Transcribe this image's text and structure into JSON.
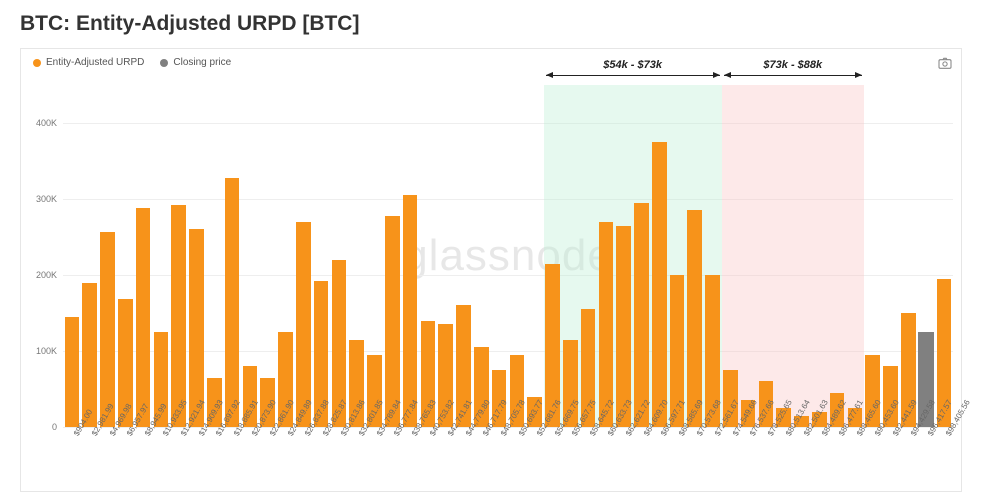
{
  "title": "BTC: Entity-Adjusted URPD [BTC]",
  "watermark": "glassnode",
  "legend": [
    {
      "label": "Entity-Adjusted URPD",
      "color": "#f7931a",
      "shape": "circle"
    },
    {
      "label": "Closing price",
      "color": "#808080",
      "shape": "circle"
    }
  ],
  "camera_icon": "camera-icon",
  "chart": {
    "type": "bar",
    "background_color": "#ffffff",
    "grid_color": "#eeeeee",
    "bar_color": "#f7931a",
    "closing_bar_color": "#808080",
    "ylim": [
      0,
      450000
    ],
    "yticks": [
      {
        "v": 0,
        "label": "0"
      },
      {
        "v": 100000,
        "label": "100K"
      },
      {
        "v": 200000,
        "label": "200K"
      },
      {
        "v": 300000,
        "label": "300K"
      },
      {
        "v": 400000,
        "label": "400K"
      }
    ],
    "bands": [
      {
        "label": "$54k - $73k",
        "start_idx": 27,
        "end_idx": 36,
        "color": "#bdeed6"
      },
      {
        "label": "$73k - $88k",
        "start_idx": 37,
        "end_idx": 44,
        "color": "#f9c6c6"
      }
    ],
    "bars": [
      {
        "x": "$904.00",
        "v": 145000
      },
      {
        "x": "$2,981.99",
        "v": 190000
      },
      {
        "x": "$4,969.98",
        "v": 257000
      },
      {
        "x": "$6,957.97",
        "v": 168000
      },
      {
        "x": "$8,945.99",
        "v": 288000
      },
      {
        "x": "$10,933.95",
        "v": 125000
      },
      {
        "x": "$12,921.94",
        "v": 292000
      },
      {
        "x": "$14,909.93",
        "v": 260000
      },
      {
        "x": "$16,897.92",
        "v": 65000
      },
      {
        "x": "$18,885.91",
        "v": 328000
      },
      {
        "x": "$20,873.90",
        "v": 80000
      },
      {
        "x": "$22,861.90",
        "v": 65000
      },
      {
        "x": "$24,849.89",
        "v": 125000
      },
      {
        "x": "$26,837.88",
        "v": 270000
      },
      {
        "x": "$28,825.87",
        "v": 192000
      },
      {
        "x": "$30,813.86",
        "v": 220000
      },
      {
        "x": "$32,801.85",
        "v": 115000
      },
      {
        "x": "$34,789.84",
        "v": 95000
      },
      {
        "x": "$36,777.84",
        "v": 278000
      },
      {
        "x": "$38,765.83",
        "v": 305000
      },
      {
        "x": "$40,753.82",
        "v": 140000
      },
      {
        "x": "$42,741.81",
        "v": 135000
      },
      {
        "x": "$44,779.80",
        "v": 160000
      },
      {
        "x": "$46,717.79",
        "v": 105000
      },
      {
        "x": "$48,705.78",
        "v": 75000
      },
      {
        "x": "$50,693.77",
        "v": 95000
      },
      {
        "x": "$52,681.76",
        "v": 40000
      },
      {
        "x": "$54,669.75",
        "v": 215000
      },
      {
        "x": "$56,657.75",
        "v": 115000
      },
      {
        "x": "$58,645.72",
        "v": 155000
      },
      {
        "x": "$60,633.73",
        "v": 270000
      },
      {
        "x": "$62,621.72",
        "v": 265000
      },
      {
        "x": "$64,609.70",
        "v": 295000
      },
      {
        "x": "$66,597.71",
        "v": 375000
      },
      {
        "x": "$68,585.69",
        "v": 200000
      },
      {
        "x": "$70,573.68",
        "v": 285000
      },
      {
        "x": "$72,561.67",
        "v": 200000
      },
      {
        "x": "$74,549.66",
        "v": 75000
      },
      {
        "x": "$76,537.66",
        "v": 35000
      },
      {
        "x": "$78,525.65",
        "v": 60000
      },
      {
        "x": "$80,513.64",
        "v": 25000
      },
      {
        "x": "$82,501.63",
        "v": 15000
      },
      {
        "x": "$84,489.62",
        "v": 20000
      },
      {
        "x": "$86,477.61",
        "v": 45000
      },
      {
        "x": "$88,465.60",
        "v": 25000
      },
      {
        "x": "$90,453.60",
        "v": 95000
      },
      {
        "x": "$92,441.59",
        "v": 80000
      },
      {
        "x": "$94,429.58",
        "v": 150000
      },
      {
        "x": "$96,417.57",
        "v": 65000,
        "closing": true,
        "closing_v": 125000
      },
      {
        "x": "$98,405.56",
        "v": 195000
      }
    ]
  }
}
